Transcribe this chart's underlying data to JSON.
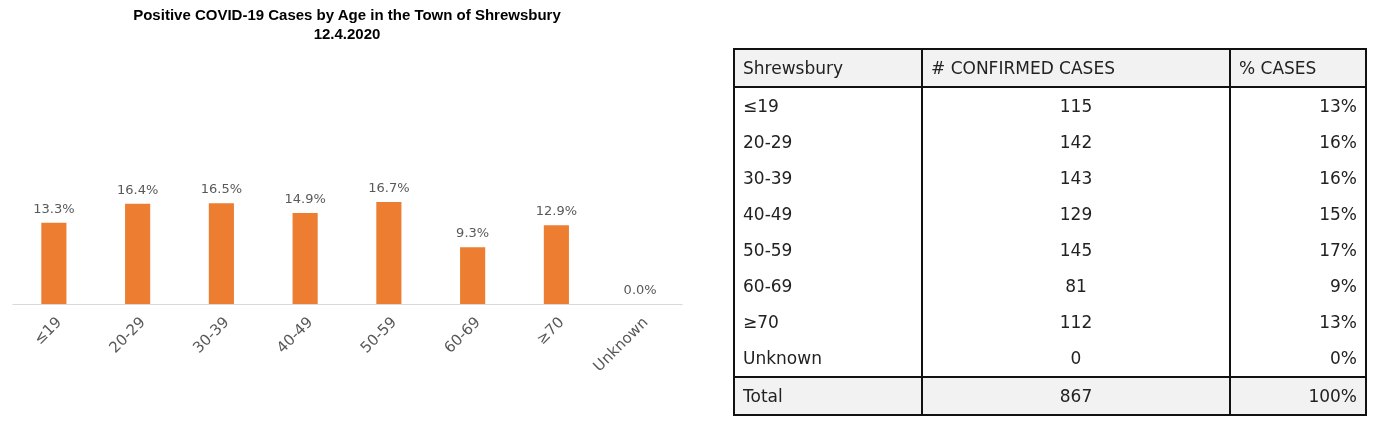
{
  "chart_data": [
    {
      "type": "bar",
      "title": "Positive COVID-19 Cases by Age in the Town of Shrewsbury",
      "subtitle": "12.4.2020",
      "categories": [
        "≤19",
        "20-29",
        "30-39",
        "40-49",
        "50-59",
        "60-69",
        "≥70",
        "Unknown"
      ],
      "values": [
        13.3,
        16.4,
        16.5,
        14.9,
        16.7,
        9.3,
        12.9,
        0.0
      ],
      "value_labels": [
        "13.3%",
        "16.4%",
        "16.5%",
        "14.9%",
        "16.7%",
        "9.3%",
        "12.9%",
        "0.0%"
      ],
      "color": "#ed7d31",
      "grid": false,
      "legend": false
    },
    {
      "type": "other",
      "legend_title": "Shrewsbury",
      "categories": [
        "≤19",
        "20-29",
        "30-39",
        "40-49",
        "50-59",
        "60-69",
        "≥70",
        "Unknown",
        "Total"
      ],
      "series": [
        {
          "name": "# CONFIRMED CASES",
          "values": [
            115,
            142,
            143,
            129,
            145,
            81,
            112,
            0,
            867
          ],
          "value_labels": [
            "115",
            "142",
            "143",
            "129",
            "145",
            "81",
            "112",
            "0",
            "867"
          ]
        },
        {
          "name": "% CASES",
          "values": [
            13,
            16,
            16,
            15,
            17,
            9,
            13,
            0,
            100
          ],
          "value_labels": [
            "13%",
            "16%",
            "16%",
            "15%",
            "17%",
            "9%",
            "13%",
            "0%",
            "100%"
          ]
        }
      ]
    }
  ]
}
